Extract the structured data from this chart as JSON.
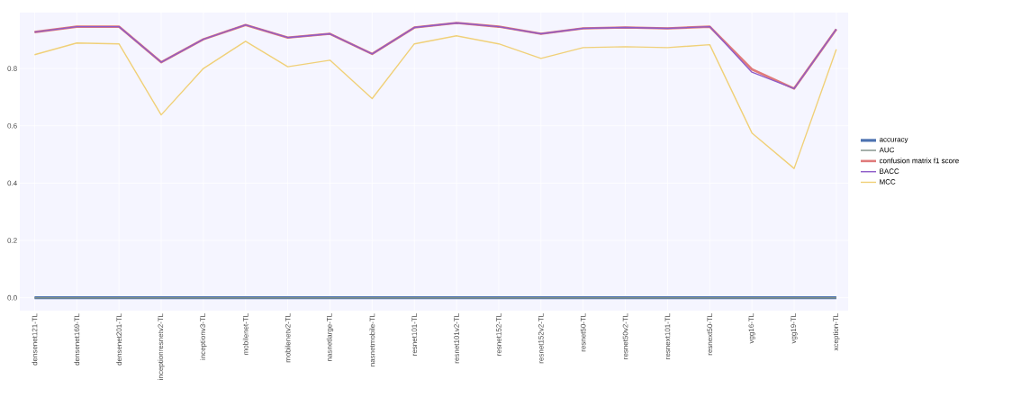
{
  "chart_data": {
    "type": "line",
    "categories": [
      "densenet121-TL",
      "densenet169-TL",
      "densenet201-TL",
      "inceptionresnetv2-TL",
      "inceptionv3-TL",
      "mobilenet-TL",
      "mobilenetv2-TL",
      "nasnetlarge-TL",
      "nasnetmobile-TL",
      "resnet101-TL",
      "resnet101v2-TL",
      "resnet152-TL",
      "resnet152v2-TL",
      "resnet50-TL",
      "resnet50v2-TL",
      "resnext101-TL",
      "resnext50-TL",
      "vgg16-TL",
      "vgg19-TL",
      "xception-TL"
    ],
    "series": [
      {
        "name": "accuracy",
        "color": "#4c72b0",
        "values": [
          0,
          0,
          0,
          0,
          0,
          0,
          0,
          0,
          0,
          0,
          0,
          0,
          0,
          0,
          0,
          0,
          0,
          0,
          0,
          0
        ]
      },
      {
        "name": "AUC",
        "color": "#7f8f86",
        "values": [
          0,
          0,
          0,
          0,
          0,
          0,
          0,
          0,
          0,
          0,
          0,
          0,
          0,
          0,
          0,
          0,
          0,
          0,
          0,
          0
        ]
      },
      {
        "name": "confusion matrix f1 score",
        "color": "#e07a7a",
        "values": [
          0.927,
          0.946,
          0.946,
          0.822,
          0.902,
          0.952,
          0.908,
          0.921,
          0.851,
          0.943,
          0.959,
          0.946,
          0.921,
          0.94,
          0.943,
          0.94,
          0.946,
          0.797,
          0.73,
          0.937
        ]
      },
      {
        "name": "BACC",
        "color": "#8e5cc8",
        "values": [
          0.927,
          0.946,
          0.946,
          0.822,
          0.902,
          0.952,
          0.908,
          0.921,
          0.851,
          0.943,
          0.959,
          0.946,
          0.921,
          0.94,
          0.943,
          0.94,
          0.946,
          0.787,
          0.73,
          0.937
        ]
      },
      {
        "name": "MCC",
        "color": "#f0d078",
        "values": [
          0.848,
          0.889,
          0.886,
          0.638,
          0.8,
          0.895,
          0.806,
          0.829,
          0.695,
          0.886,
          0.914,
          0.886,
          0.835,
          0.873,
          0.876,
          0.873,
          0.883,
          0.575,
          0.451,
          0.867
        ]
      }
    ],
    "ylim": [
      -0.045,
      0.995
    ],
    "yticks": [
      {
        "value": 0,
        "label": "0.0"
      },
      0.2,
      0.4,
      0.6,
      0.8
    ],
    "grid": true,
    "legend": "right",
    "marker": "none",
    "line_style": "solid"
  }
}
